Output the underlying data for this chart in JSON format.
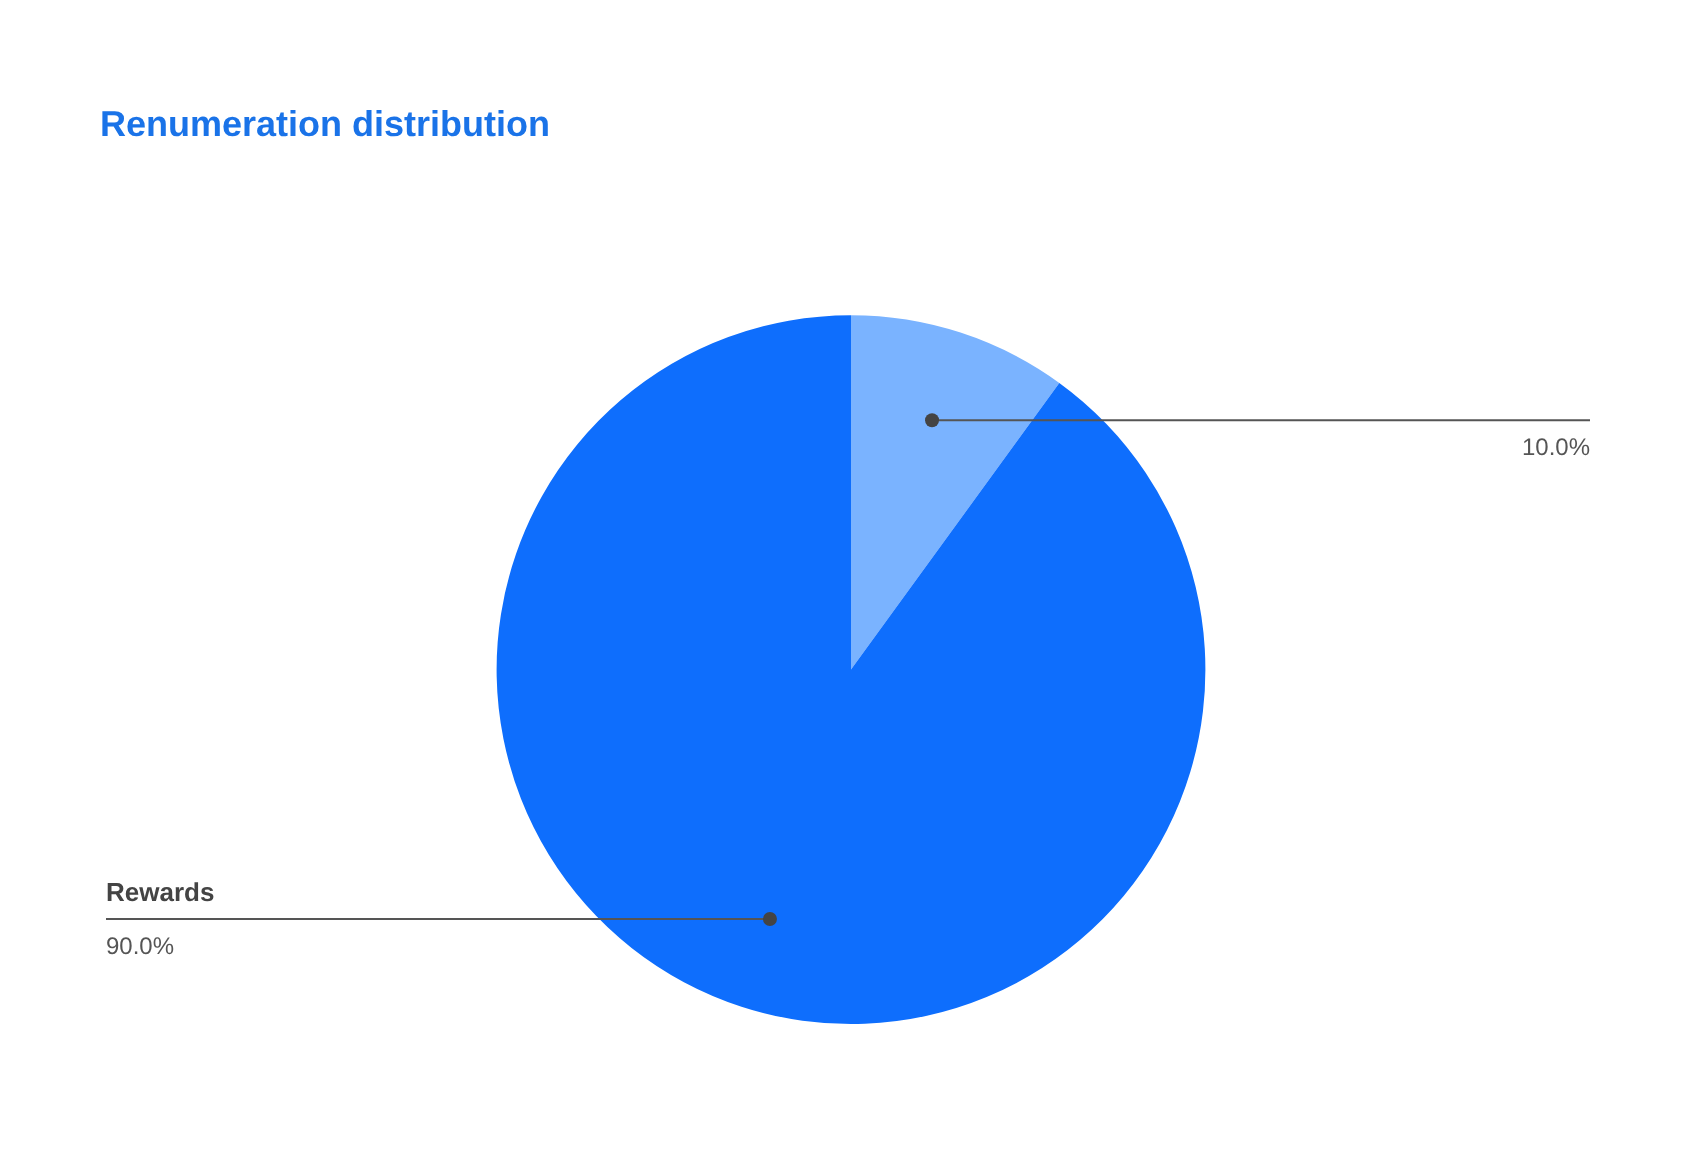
{
  "chart_data": {
    "type": "pie",
    "title": "Renumeration distribution",
    "categories": [
      null,
      "Rewards"
    ],
    "values": [
      10,
      90
    ],
    "colors": [
      "#7ab3ff",
      "#0e6efd"
    ],
    "value_labels": [
      "10.0%",
      "90.0%"
    ]
  }
}
